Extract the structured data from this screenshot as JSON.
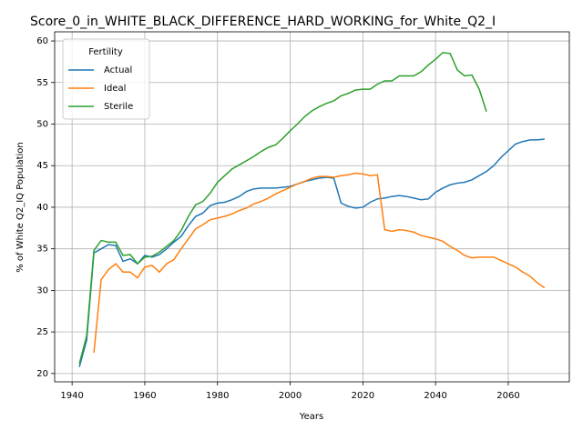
{
  "chart_data": {
    "type": "line",
    "title": "Score_0_in_WHITE_BLACK_DIFFERENCE_HARD_WORKING_for_White_Q2_I",
    "x_label": "Years",
    "y_label": "% of White Q2_IQ Population",
    "legend_title": "Fertility",
    "legend_position": "upper left",
    "grid": true,
    "xlim": [
      1935.2,
      2076.8
    ],
    "ylim": [
      19.0,
      61.1
    ],
    "xticks": [
      1940,
      1960,
      1980,
      2000,
      2020,
      2040,
      2060
    ],
    "yticks": [
      20,
      25,
      30,
      35,
      40,
      45,
      50,
      55,
      60
    ],
    "x": [
      1942,
      1944,
      1946,
      1948,
      1950,
      1952,
      1954,
      1956,
      1958,
      1960,
      1962,
      1964,
      1966,
      1968,
      1970,
      1972,
      1974,
      1976,
      1978,
      1980,
      1982,
      1984,
      1986,
      1988,
      1990,
      1992,
      1994,
      1996,
      1998,
      2000,
      2002,
      2004,
      2006,
      2008,
      2010,
      2012,
      2014,
      2016,
      2018,
      2020,
      2022,
      2024,
      2026,
      2028,
      2030,
      2032,
      2034,
      2036,
      2038,
      2040,
      2042,
      2044,
      2046,
      2048,
      2050,
      2052,
      2054,
      2056,
      2058,
      2060,
      2062,
      2064,
      2066,
      2068,
      2070
    ],
    "series": [
      {
        "name": "Actual",
        "color": "#1f77b4",
        "values": [
          20.8,
          24,
          34.5,
          35,
          35.5,
          35.4,
          33.5,
          33.8,
          33.2,
          34.2,
          34,
          34.3,
          35,
          35.8,
          36.5,
          37.8,
          38.9,
          39.3,
          40.2,
          40.5,
          40.6,
          40.9,
          41.3,
          41.9,
          42.2,
          42.3,
          42.3,
          42.3,
          42.4,
          42.5,
          42.8,
          43.1,
          43.3,
          43.5,
          43.6,
          43.5,
          40.5,
          40.1,
          39.9,
          40,
          40.6,
          41,
          41.1,
          41.3,
          41.4,
          41.3,
          41.1,
          40.9,
          41,
          41.8,
          42.3,
          42.7,
          42.9,
          43,
          43.3,
          43.8,
          44.3,
          45,
          46,
          46.8,
          47.6,
          47.9,
          48.1,
          48.1,
          48.2
        ]
      },
      {
        "name": "Ideal",
        "color": "#ff7f0e",
        "values": [
          null,
          null,
          22.5,
          31.3,
          32.5,
          33.2,
          32.2,
          32.2,
          31.5,
          32.8,
          33,
          32.2,
          33.2,
          33.7,
          35,
          36.2,
          37.4,
          37.9,
          38.5,
          38.7,
          38.9,
          39.2,
          39.6,
          39.9,
          40.4,
          40.7,
          41.1,
          41.6,
          42,
          42.4,
          42.8,
          43.1,
          43.5,
          43.7,
          43.7,
          43.6,
          43.8,
          43.9,
          44.1,
          44,
          43.8,
          43.9,
          37.3,
          37.1,
          37.3,
          37.2,
          37,
          36.6,
          36.4,
          36.2,
          35.9,
          35.3,
          34.8,
          34.2,
          33.9,
          34,
          34,
          34,
          33.6,
          33.2,
          32.8,
          32.2,
          31.7,
          30.9,
          30.3
        ]
      },
      {
        "name": "Sterile",
        "color": "#2ca02c",
        "values": [
          21.2,
          24.5,
          34.8,
          36,
          35.8,
          35.8,
          34.2,
          34.3,
          33.2,
          34,
          34.1,
          34.6,
          35.3,
          36,
          37.2,
          38.9,
          40.3,
          40.7,
          41.7,
          43,
          43.8,
          44.6,
          45.1,
          45.6,
          46.1,
          46.7,
          47.2,
          47.5,
          48.3,
          49.2,
          50,
          50.9,
          51.6,
          52.1,
          52.5,
          52.8,
          53.4,
          53.7,
          54.1,
          54.2,
          54.2,
          54.8,
          55.2,
          55.2,
          55.8,
          55.8,
          55.8,
          56.3,
          57.1,
          57.8,
          58.6,
          58.5,
          56.5,
          55.8,
          55.9,
          54.2,
          51.5,
          null,
          null,
          null,
          null,
          null,
          null,
          null,
          null
        ]
      }
    ]
  }
}
